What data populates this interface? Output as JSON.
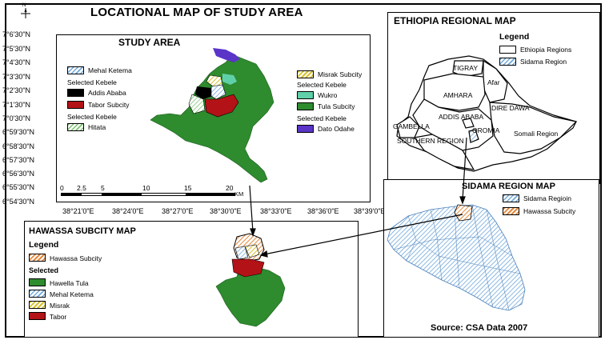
{
  "main_title": "LOCATIONAL MAP OF STUDY AREA",
  "north_letter": "N",
  "study_area": {
    "title": "STUDY AREA",
    "y_labels": [
      "7°6'30\"N",
      "7°5'30\"N",
      "7°4'30\"N",
      "7°3'30\"N",
      "7°2'30\"N",
      "7°1'30\"N",
      "7°0'30\"N",
      "6°59'30\"N",
      "6°58'30\"N",
      "6°57'30\"N",
      "6°56'30\"N",
      "6°55'30\"N",
      "6°54'30\"N"
    ],
    "x_labels": [
      "38°21'0\"E",
      "38°24'0\"E",
      "38°27'0\"E",
      "38°30'0\"E",
      "38°33'0\"E",
      "38°36'0\"E",
      "38°39'0\"E"
    ],
    "scale_labels": [
      "0",
      "2.5",
      "5",
      "10",
      "15",
      "20"
    ],
    "scale_unit": "KM",
    "legend_left": {
      "item1": "Mehal Ketema",
      "head1": "Selected Kebele",
      "item2": "Addis Ababa",
      "item3": "Tabor Subcity",
      "head2": "Selected Kebele",
      "item4": "Hitata"
    },
    "legend_right": {
      "item1": "Misrak Subcity",
      "head1": "Selected Kebele",
      "item2": "Wukro",
      "item3": "Tula Subcity",
      "head2": "Selected Kebele",
      "item4": "Dato Odahe"
    }
  },
  "ethiopia": {
    "title": "ETHIOPIA REGIONAL MAP",
    "legend_title": "Legend",
    "legend_items": [
      "Ethiopia Regions",
      "Sidama Region"
    ],
    "region_labels": [
      "TIGRAY",
      "Afar",
      "AMHARA",
      "DIRE DAWA",
      "ADDIS ABABA",
      "GAMBELLA",
      "OROMIA",
      "Somali Region",
      "SOUTHERN REGION"
    ]
  },
  "sidama": {
    "title": "SIDAMA REGION   MAP",
    "legend_items": [
      "Sidama Regioin",
      "Hawassa Subcity"
    ]
  },
  "hawassa": {
    "title": "HAWASSA SUBCITY MAP",
    "legend_title": "Legend",
    "item1": "Hawassa Subcity",
    "selected": "Selected",
    "items": [
      "Hawella Tula",
      "Mehal Ketema",
      "Misrak",
      "Tabor"
    ]
  },
  "source": "Source: CSA Data 2007",
  "colors": {
    "green": "#2e8b2e",
    "red": "#b31217",
    "purple": "#5a35c8",
    "teal": "#5fd0a8",
    "orange": "#e6873a",
    "blue_hatch": "#6fa8dc"
  }
}
